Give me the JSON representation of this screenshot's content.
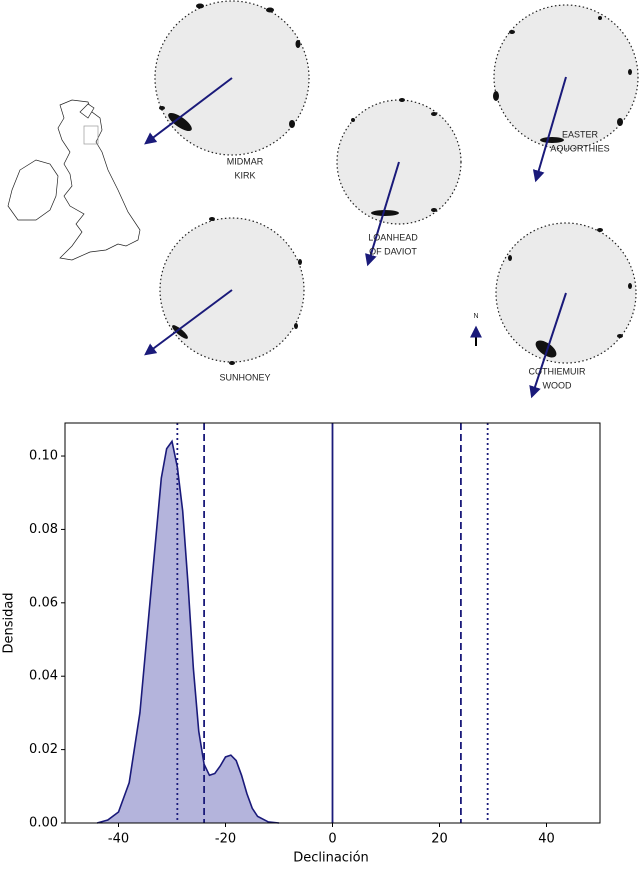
{
  "diagram": {
    "sites": [
      {
        "label": [
          "MIDMAR",
          "KIRK"
        ]
      },
      {
        "label": [
          "LOANHEAD",
          "OF DAVIOT"
        ]
      },
      {
        "label": [
          "EASTER",
          "AQUORTHIES"
        ]
      },
      {
        "label": [
          "SUNHONEY"
        ]
      },
      {
        "label": [
          "COTHIEMUIR",
          "WOOD"
        ]
      }
    ],
    "north": "N"
  },
  "chart_data": {
    "type": "kde",
    "x_label": "Declinación",
    "y_label": "Densidad",
    "x": [
      -44,
      -42,
      -40,
      -38,
      -36,
      -34,
      -32,
      -31,
      -30,
      -29,
      -28,
      -27,
      -26,
      -25,
      -24,
      -23,
      -22,
      -21,
      -20,
      -19,
      -18,
      -17,
      -16,
      -15,
      -14,
      -12,
      -10
    ],
    "values": [
      0,
      0.0008,
      0.003,
      0.011,
      0.03,
      0.062,
      0.094,
      0.102,
      0.104,
      0.097,
      0.085,
      0.065,
      0.042,
      0.025,
      0.016,
      0.013,
      0.0135,
      0.0155,
      0.018,
      0.0185,
      0.017,
      0.013,
      0.008,
      0.004,
      0.0018,
      0.0003,
      0
    ],
    "color": "#1a1a7a",
    "fill_color": "#b4b4dc",
    "reference_lines": [
      {
        "value": 0,
        "style": "solid"
      },
      {
        "value": -24,
        "style": "dashed"
      },
      {
        "value": 24,
        "style": "dashed"
      },
      {
        "value": -29,
        "style": "dotted"
      },
      {
        "value": 29,
        "style": "dotted"
      }
    ],
    "xlim": [
      -50,
      50
    ],
    "xticks": [
      -40,
      -20,
      0,
      20,
      40
    ],
    "ylim": [
      0,
      0.109
    ],
    "yticks": [
      {
        "value": 0,
        "label": "0.00"
      },
      {
        "value": 0.02,
        "label": "0.02"
      },
      {
        "value": 0.04,
        "label": "0.04"
      },
      {
        "value": 0.06,
        "label": "0.06"
      },
      {
        "value": 0.08,
        "label": "0.08"
      },
      {
        "value": 0.1,
        "label": "0.10"
      }
    ]
  }
}
